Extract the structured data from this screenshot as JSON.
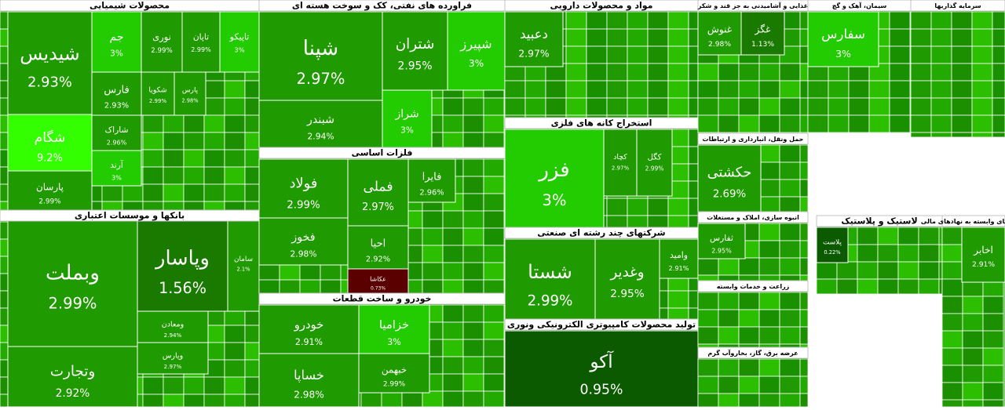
{
  "sectors": [
    {
      "title": "محصولات شیمیایی",
      "tiles": [
        {
          "name": "شیدیس",
          "change": "2.93%",
          "color": "#1f9a00"
        },
        {
          "name": "شگام",
          "change": "9.2%",
          "color": "#33ff00"
        },
        {
          "name": "پارسان",
          "change": "2.99%",
          "color": "#1f9a00"
        },
        {
          "name": "جم",
          "change": "3%",
          "color": "#22cc00"
        },
        {
          "name": "نوری",
          "change": "2.99%",
          "color": "#1f9a00"
        },
        {
          "name": "تاپان",
          "change": "2.99%",
          "color": "#1f9a00"
        },
        {
          "name": "تاپیکو",
          "change": "3%",
          "color": "#22cc00"
        },
        {
          "name": "فارس",
          "change": "2.93%",
          "color": "#1f9a00"
        },
        {
          "name": "شکویا",
          "change": "2.99%",
          "color": "#1f9a00"
        },
        {
          "name": "پارس",
          "change": "2.98%",
          "color": "#1f9a00"
        },
        {
          "name": "شاراک",
          "change": "2.96%",
          "color": "#1f9a00"
        },
        {
          "name": "آرند",
          "change": "3%",
          "color": "#22cc00"
        }
      ]
    },
    {
      "title": "بانکها و موسسات اعتباری",
      "tiles": [
        {
          "name": "وبملت",
          "change": "2.99%",
          "color": "#1f9a00"
        },
        {
          "name": "وپاسار",
          "change": "1.56%",
          "color": "#1a7a00"
        },
        {
          "name": "سامان",
          "change": "2.1%",
          "color": "#1f9a00"
        },
        {
          "name": "ومعادن",
          "change": "2.94%",
          "color": "#1f9a00"
        },
        {
          "name": "وپارس",
          "change": "2.97%",
          "color": "#1f9a00"
        },
        {
          "name": "وتجارت",
          "change": "2.92%",
          "color": "#1f9a00"
        }
      ]
    },
    {
      "title": "فراورده های نفتی، کک و سوخت هسته ای",
      "tiles": [
        {
          "name": "شپنا",
          "change": "2.97%",
          "color": "#1f9a00"
        },
        {
          "name": "شبندر",
          "change": "2.94%",
          "color": "#1f9a00"
        },
        {
          "name": "شتران",
          "change": "2.95%",
          "color": "#1f9a00"
        },
        {
          "name": "شپیرز",
          "change": "3%",
          "color": "#22cc00"
        },
        {
          "name": "شراز",
          "change": "3%",
          "color": "#22cc00"
        }
      ]
    },
    {
      "title": "فلزات اساسی",
      "tiles": [
        {
          "name": "فولاد",
          "change": "2.99%",
          "color": "#1f9a00"
        },
        {
          "name": "فخوز",
          "change": "2.98%",
          "color": "#1f9a00"
        },
        {
          "name": "فملی",
          "change": "2.97%",
          "color": "#1f9a00"
        },
        {
          "name": "فایرا",
          "change": "2.96%",
          "color": "#1f9a00"
        },
        {
          "name": "احیا",
          "change": "2.92%",
          "color": "#1f9a00"
        },
        {
          "name": "عکاشا",
          "change": "0.73%",
          "color": "#5a0000"
        }
      ]
    },
    {
      "title": "خودرو و ساخت قطعات",
      "tiles": [
        {
          "name": "خودرو",
          "change": "2.91%",
          "color": "#1f9a00"
        },
        {
          "name": "خساپا",
          "change": "2.98%",
          "color": "#1f9a00"
        },
        {
          "name": "خزامیا",
          "change": "3%",
          "color": "#22cc00"
        },
        {
          "name": "خبهمن",
          "change": "2.99%",
          "color": "#1f9a00"
        }
      ]
    },
    {
      "title": "مواد و محصولات دارویی",
      "tiles": [
        {
          "name": "دعبید",
          "change": "2.97%",
          "color": "#1f9a00"
        }
      ]
    },
    {
      "title": "استخراج کانه های فلزی",
      "tiles": [
        {
          "name": "فزر",
          "change": "3%",
          "color": "#22cc00"
        },
        {
          "name": "کچاد",
          "change": "2.97%",
          "color": "#1f9a00"
        },
        {
          "name": "کگل",
          "change": "2.99%",
          "color": "#1f9a00"
        }
      ]
    },
    {
      "title": "شرکتهای چند رشته ای صنعتی",
      "tiles": [
        {
          "name": "شستا",
          "change": "2.99%",
          "color": "#1f9a00"
        },
        {
          "name": "وغدیر",
          "change": "2.95%",
          "color": "#1f9a00"
        },
        {
          "name": "وامید",
          "change": "2.91%",
          "color": "#1f9a00"
        }
      ]
    },
    {
      "title": "تولید محصولات کامپیوتری الکترونیکی ونوری",
      "tiles": [
        {
          "name": "آکو",
          "change": "0.95%",
          "color": "#0b5a00"
        }
      ]
    },
    {
      "title": "غذایی و آشامیدنی به جز قند و شکر",
      "tiles": [
        {
          "name": "غنوش",
          "change": "2.98%",
          "color": "#1f9a00"
        },
        {
          "name": "غگز",
          "change": "1.13%",
          "color": "#1a7a00"
        }
      ]
    },
    {
      "title": "سیمان، آهک و گچ",
      "tiles": [
        {
          "name": "سفارس",
          "change": "3%",
          "color": "#22cc00"
        }
      ]
    },
    {
      "title": "سرمایه گذاریها",
      "tiles": []
    },
    {
      "title": "حمل ونقل، انبارداری و ارتباطات",
      "tiles": [
        {
          "name": "حکشتی",
          "change": "2.69%",
          "color": "#1f9a00"
        }
      ]
    },
    {
      "title": "انبوه سازی، املاک و مستغلات",
      "tiles": [
        {
          "name": "ثفارس",
          "change": "2.95%",
          "color": "#1f9a00"
        }
      ]
    },
    {
      "title": "زراعت و خدمات وابسته",
      "tiles": []
    },
    {
      "title": "عرضه برق، گاز، بخاروآب گرم",
      "tiles": []
    },
    {
      "title": "لاستیک و پلاستیک",
      "tiles": [
        {
          "name": "پلاست",
          "change": "0.22%",
          "color": "#0b5a00"
        }
      ]
    },
    {
      "title": "فعالیتهای وابسته به نهادهای مالی",
      "tiles": [
        {
          "name": "اخابر",
          "change": "2.91%",
          "color": "#1f9a00"
        }
      ]
    }
  ]
}
